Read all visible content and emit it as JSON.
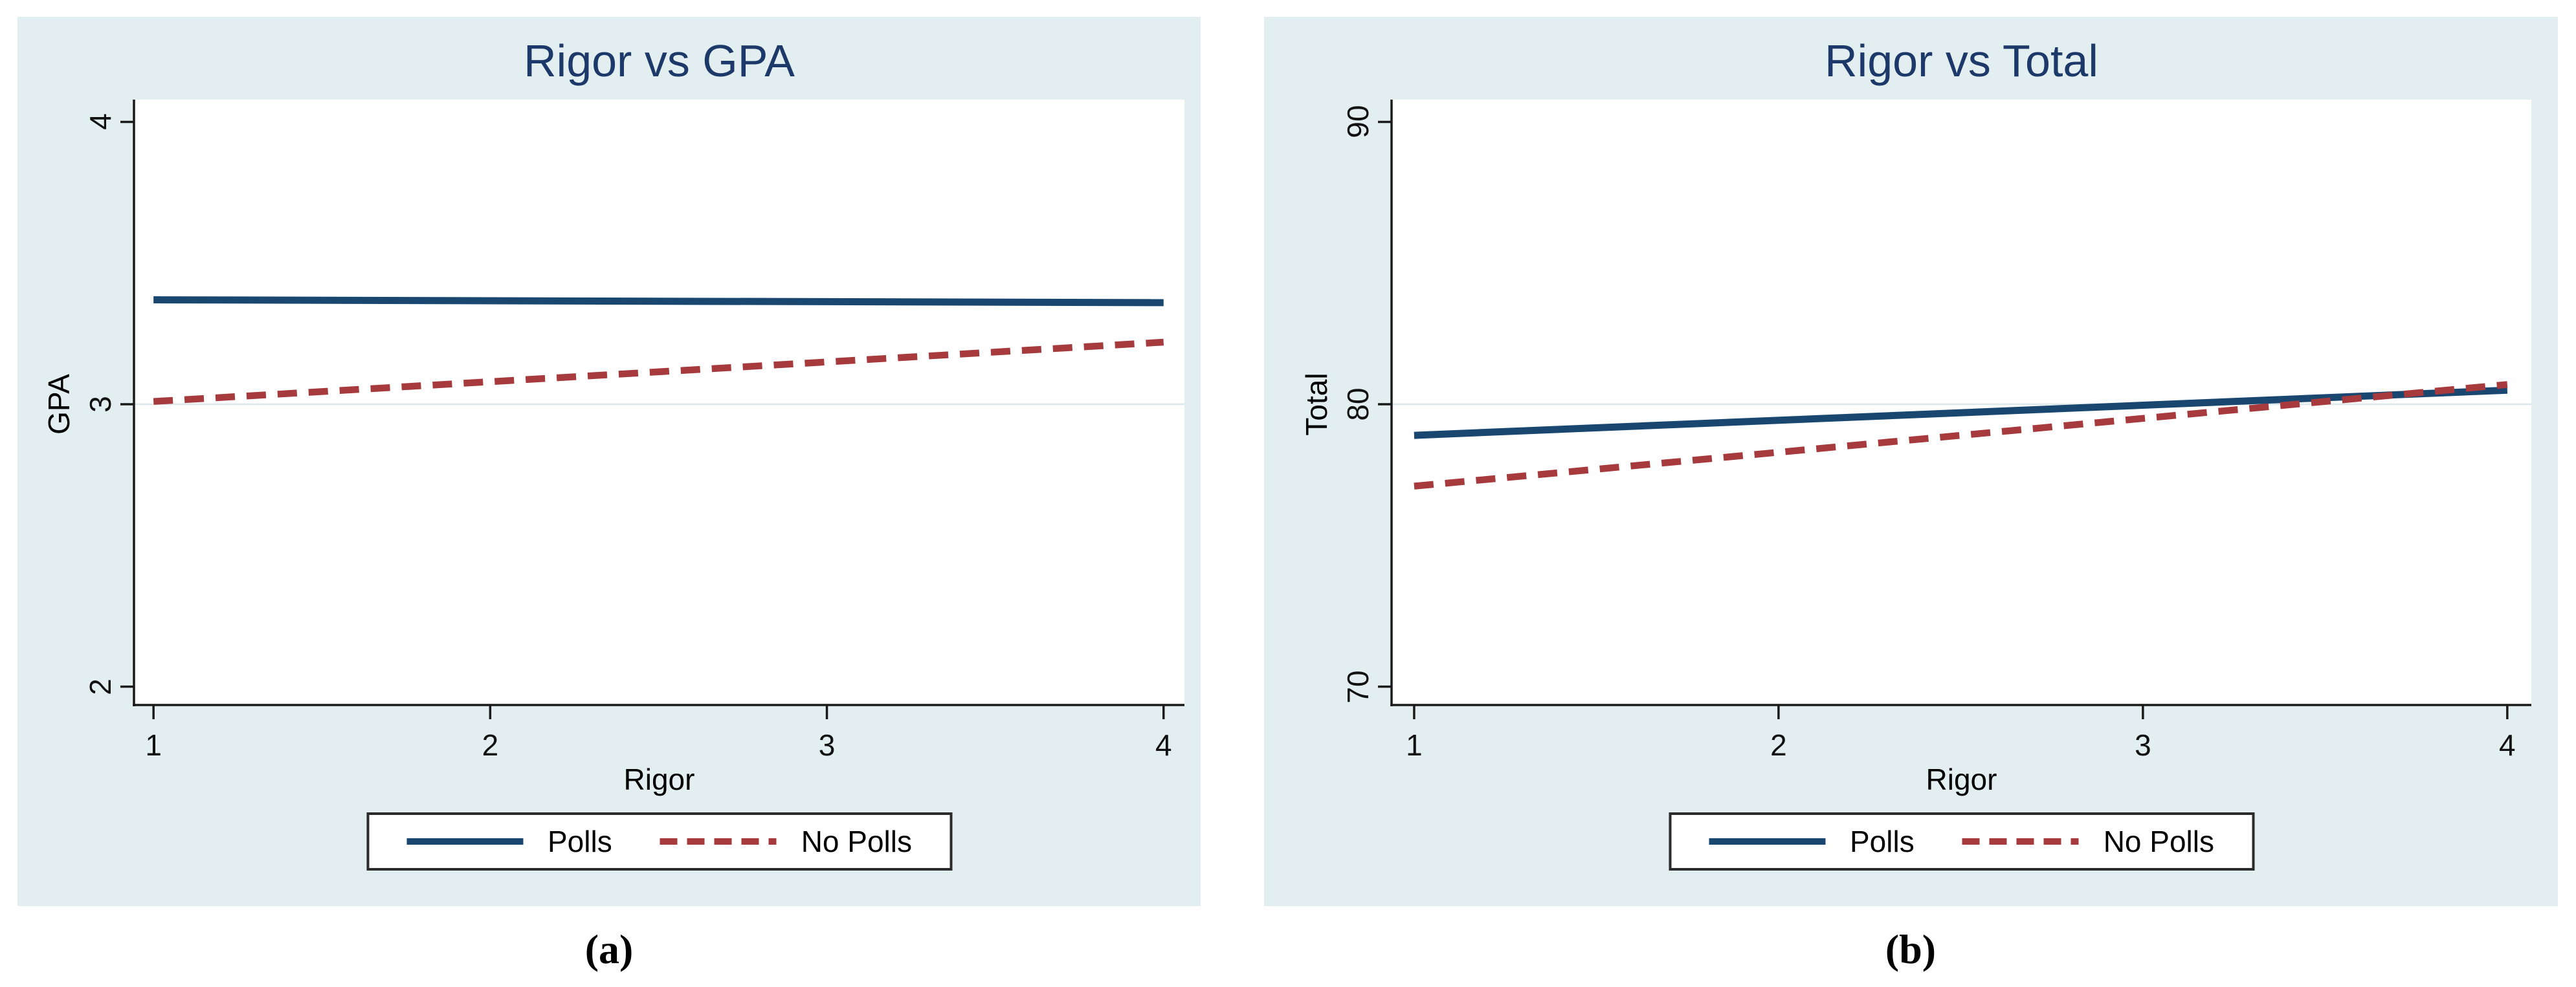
{
  "colors": {
    "panel_background": "#e3eef1",
    "plot_background": "#ffffff",
    "axis": "#1a1a1a",
    "gridline": "#dde8eb",
    "title": "#1c3969",
    "tick_text": "#111111",
    "navy_series": "#19476f",
    "red_series": "#a63a3c"
  },
  "captions": {
    "a": "(a)",
    "b": "(b)"
  },
  "chart_data": [
    {
      "type": "line",
      "title": "Rigor vs GPA",
      "xlabel": "Rigor",
      "ylabel": "GPA",
      "x_ticks": [
        1,
        2,
        3,
        4
      ],
      "y_ticks": [
        2,
        3,
        4
      ],
      "gridlines_y": [
        3
      ],
      "xlim": [
        0.942,
        4.062
      ],
      "ylim": [
        1.935,
        4.079
      ],
      "legend_position": "bottom-center",
      "grid": "only at y=3",
      "series": [
        {
          "name": "Polls",
          "style": "solid",
          "color": "#19476f",
          "points": [
            [
              1,
              3.37
            ],
            [
              4,
              3.36
            ]
          ]
        },
        {
          "name": "No Polls",
          "style": "dashed",
          "color": "#a63a3c",
          "points": [
            [
              1,
              3.01
            ],
            [
              4,
              3.22
            ]
          ]
        }
      ]
    },
    {
      "type": "line",
      "title": "Rigor vs Total",
      "xlabel": "Rigor",
      "ylabel": "Total",
      "x_ticks": [
        1,
        2,
        3,
        4
      ],
      "y_ticks": [
        70,
        80,
        90
      ],
      "gridlines_y": [
        80
      ],
      "xlim": [
        0.938,
        4.066
      ],
      "ylim": [
        69.35,
        90.79
      ],
      "legend_position": "bottom-center",
      "grid": "only at y=80",
      "series": [
        {
          "name": "Polls",
          "style": "solid",
          "color": "#19476f",
          "points": [
            [
              1,
              78.9
            ],
            [
              4,
              80.5
            ]
          ]
        },
        {
          "name": "No Polls",
          "style": "dashed",
          "color": "#a63a3c",
          "points": [
            [
              1,
              77.1
            ],
            [
              4,
              80.7
            ]
          ]
        }
      ]
    }
  ]
}
